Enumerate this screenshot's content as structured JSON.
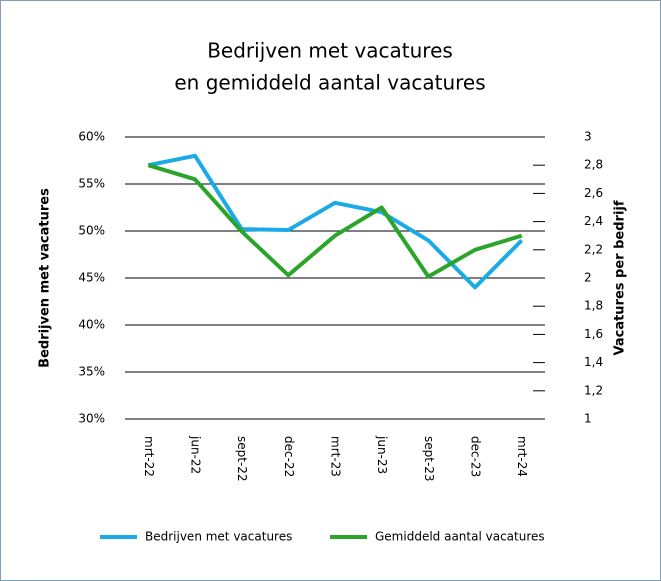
{
  "chart_data": {
    "type": "line",
    "title": [
      "Bedrijven met vacatures",
      "en gemiddeld aantal vacatures"
    ],
    "categories": [
      "mrt-22",
      "jun-22",
      "sept-22",
      "dec-22",
      "mrt-23",
      "jun-23",
      "sept-23",
      "dec-23",
      "mrt-24"
    ],
    "series": [
      {
        "name": "Bedrijven met vacatures",
        "color": "#1aaae6",
        "values": [
          57,
          58,
          50.2,
          50.1,
          53,
          52,
          49,
          44,
          49
        ]
      },
      {
        "name": "Gemiddeld aantal vacatures",
        "color": "#2aa52a",
        "axis": "y2",
        "values": [
          2.8,
          2.7,
          2.33,
          2.02,
          2.3,
          2.5,
          2.01,
          2.2,
          2.3
        ]
      }
    ],
    "ylabel": "Bedrijven met vacatures",
    "y2label": "Vacatures per bedrijf",
    "ylim": [
      30,
      60
    ],
    "yticks": [
      {
        "value": 30,
        "label": "30%"
      },
      {
        "value": 35,
        "label": "35%"
      },
      {
        "value": 40,
        "label": "40%"
      },
      {
        "value": 45,
        "label": "45%"
      },
      {
        "value": 50,
        "label": "50%"
      },
      {
        "value": 55,
        "label": "55%"
      },
      {
        "value": 60,
        "label": "60%"
      }
    ],
    "y2lim": [
      1,
      3
    ],
    "y2ticks": [
      1,
      {
        "value": 1.2,
        "label": "1,2"
      },
      {
        "value": 1.4,
        "label": "1,4"
      },
      {
        "value": 1.6,
        "label": "1,6"
      },
      {
        "value": 1.8,
        "label": "1,8"
      },
      2,
      {
        "value": 2.2,
        "label": "2,2"
      },
      {
        "value": 2.4,
        "label": "2,4"
      },
      {
        "value": 2.6,
        "label": "2,6"
      },
      {
        "value": 2.8,
        "label": "2,8"
      },
      3
    ],
    "grid": true,
    "legend": "bottom"
  }
}
